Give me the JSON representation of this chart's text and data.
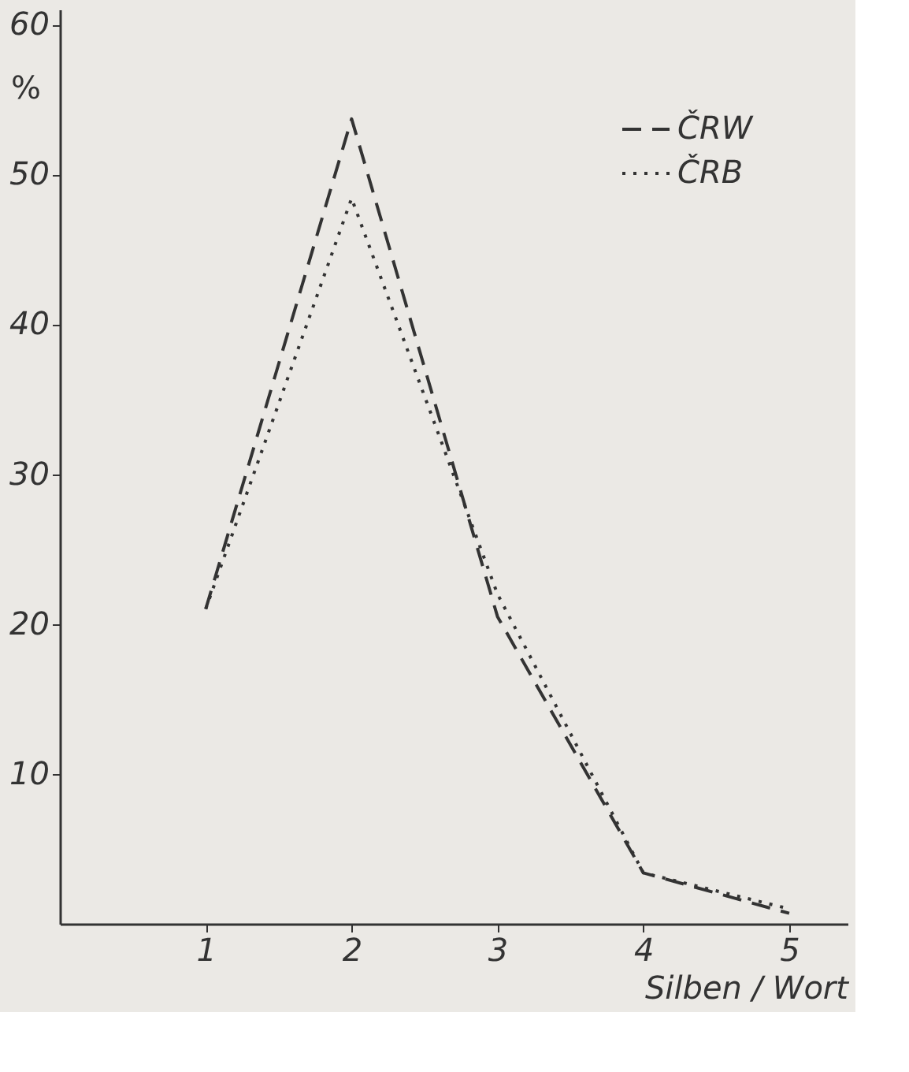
{
  "chart_data": {
    "type": "line",
    "xlabel": "Silben / Wort",
    "ylabel": "%",
    "x": [
      1,
      2,
      3,
      4,
      5
    ],
    "series": [
      {
        "name": "ČRW",
        "color": "#333333",
        "line_style": "dashed",
        "values": [
          21,
          53.7,
          20.5,
          3.4,
          0.7
        ]
      },
      {
        "name": "ČRB",
        "color": "#333333",
        "line_style": "dotted",
        "values": [
          21,
          48.4,
          22,
          3.4,
          1.0
        ]
      }
    ],
    "xlim": [
      0,
      5.4
    ],
    "ylim": [
      0,
      61
    ],
    "xticks": [
      1,
      2,
      3,
      4,
      5
    ],
    "yticks": [
      10,
      20,
      30,
      40,
      50,
      60
    ],
    "grid": false,
    "legend": "top right",
    "marker": "none"
  }
}
